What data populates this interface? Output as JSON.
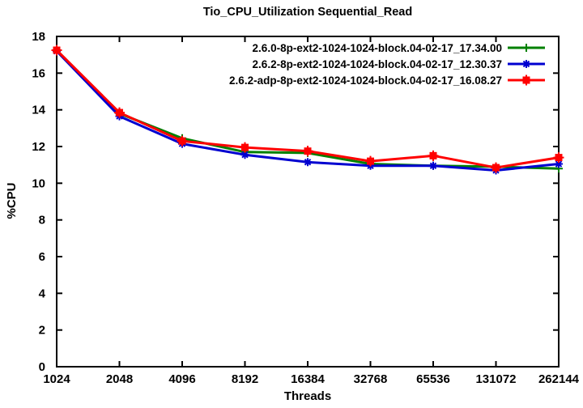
{
  "chart_data": {
    "type": "line",
    "title": "Tio_CPU_Utilization Sequential_Read",
    "xlabel": "Threads",
    "ylabel": "%CPU",
    "x_scale": "log2",
    "grid": false,
    "legend_position": "top-right-inside",
    "x": [
      1024,
      2048,
      4096,
      8192,
      16384,
      32768,
      65536,
      131072,
      262144
    ],
    "x_tick_labels": [
      "1024",
      "2048",
      "4096",
      "8192",
      "16384",
      "32768",
      "65536",
      "131072",
      "262144"
    ],
    "ylim": [
      0,
      18
    ],
    "y_ticks": [
      0,
      2,
      4,
      6,
      8,
      10,
      12,
      14,
      16,
      18
    ],
    "axis_color": "#000000",
    "series": [
      {
        "name": "2.6.0-8p-ext2-1024-1024-block.04-02-17_17.34.00",
        "color": "#008000",
        "marker": "plus",
        "values": [
          17.2,
          13.8,
          12.45,
          11.7,
          11.65,
          11.05,
          10.95,
          10.9,
          10.8
        ]
      },
      {
        "name": "2.6.2-8p-ext2-1024-1024-block.04-02-17_12.30.37",
        "color": "#0000d0",
        "marker": "asterisk",
        "values": [
          17.2,
          13.65,
          12.15,
          11.55,
          11.15,
          10.95,
          10.95,
          10.7,
          11.05
        ]
      },
      {
        "name": "2.6.2-adp-8p-ext2-1024-1024-block.04-02-17_16.08.27",
        "color": "#ff0000",
        "marker": "square-plus",
        "values": [
          17.25,
          13.85,
          12.3,
          11.95,
          11.75,
          11.2,
          11.5,
          10.85,
          11.4
        ]
      }
    ]
  }
}
